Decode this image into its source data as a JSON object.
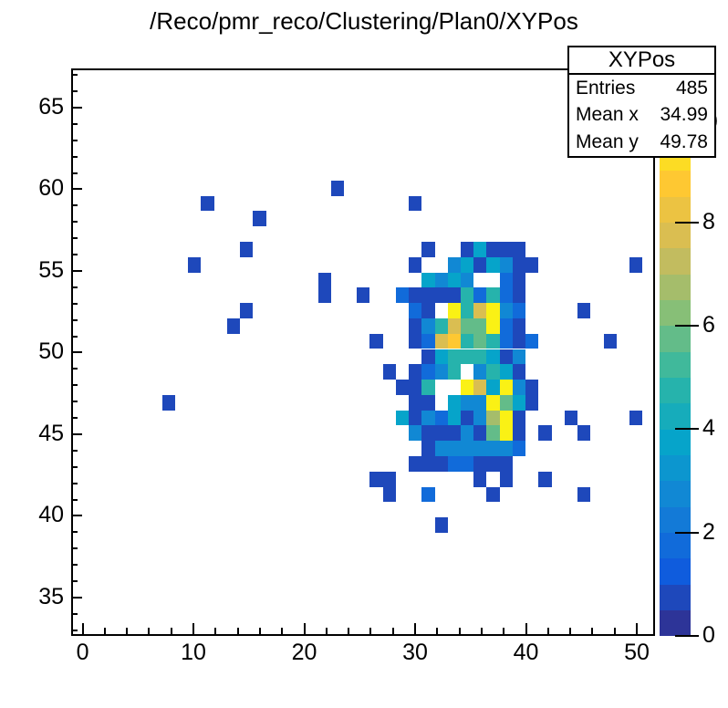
{
  "chart_data": {
    "type": "heatmap",
    "title": "/Reco/pmr_reco/Clustering/Plan0/XYPos",
    "stats": {
      "name": "XYPos",
      "labels": {
        "entries": "Entries",
        "mean_x": "Mean x",
        "mean_y": "Mean y"
      },
      "entries": "485",
      "mean_x": "34.99",
      "mean_y": "49.78"
    },
    "overflow_glyph": ")",
    "x_axis": {
      "min": -1.03,
      "max": 51.64,
      "ticks": [
        0,
        10,
        20,
        30,
        40,
        50
      ],
      "minor_step": 2,
      "major_step": 10
    },
    "y_axis": {
      "min": 32.65,
      "max": 67.4,
      "ticks": [
        35,
        40,
        45,
        50,
        55,
        60,
        65
      ],
      "minor_step": 1,
      "major_step": 5
    },
    "z_axis": {
      "min": 0,
      "max": 10,
      "ticks": [
        0,
        2,
        4,
        6,
        8
      ]
    },
    "grid": {
      "x0": 0.74,
      "dx": 1.171,
      "y0": 64.75,
      "dy": -0.9374
    },
    "count_colors": [
      "#1e48bb",
      "#116bda",
      "#1188d4",
      "#06a4ca",
      "#26b3ac",
      "#63bc89",
      "#a5bd6b",
      "#dabe51",
      "#fec832",
      "#faf115"
    ],
    "palette_bands": [
      "#2d3498",
      "#1e48bb",
      "#0f5cdd",
      "#116bda",
      "#137ad7",
      "#1188d4",
      "#0c96cf",
      "#06a4ca",
      "#16acbb",
      "#26b3ac",
      "#40b99b",
      "#63bc89",
      "#87bf77",
      "#a5bd6b",
      "#c2bc5f",
      "#dabe51",
      "#ecc342",
      "#fec832",
      "#fcdc24",
      "#faf115"
    ],
    "cells": [
      [
        19,
        5,
        1
      ],
      [
        9,
        6,
        1
      ],
      [
        25,
        6,
        1
      ],
      [
        13,
        7,
        1
      ],
      [
        12,
        9,
        1
      ],
      [
        8,
        10,
        1
      ],
      [
        42,
        10,
        1
      ],
      [
        18,
        11,
        1
      ],
      [
        18,
        12,
        1
      ],
      [
        21,
        12,
        1
      ],
      [
        12,
        13,
        1
      ],
      [
        38,
        13,
        1
      ],
      [
        11,
        14,
        1
      ],
      [
        22,
        15,
        1
      ],
      [
        40,
        15,
        1
      ],
      [
        23,
        17,
        1
      ],
      [
        6,
        19,
        1
      ],
      [
        37,
        20,
        1
      ],
      [
        42,
        20,
        1
      ],
      [
        35,
        21,
        1
      ],
      [
        38,
        21,
        1
      ],
      [
        22,
        24,
        1
      ],
      [
        23,
        24,
        1
      ],
      [
        30,
        24,
        1
      ],
      [
        32,
        24,
        1
      ],
      [
        35,
        24,
        1
      ],
      [
        23,
        25,
        1
      ],
      [
        26,
        25,
        2
      ],
      [
        31,
        25,
        1
      ],
      [
        38,
        25,
        1
      ],
      [
        27,
        27,
        1
      ],
      [
        26,
        9,
        1
      ],
      [
        29,
        9,
        1
      ],
      [
        30,
        9,
        4
      ],
      [
        31,
        9,
        1
      ],
      [
        32,
        9,
        1
      ],
      [
        33,
        9,
        1
      ],
      [
        25,
        10,
        1
      ],
      [
        28,
        10,
        3
      ],
      [
        29,
        10,
        4
      ],
      [
        30,
        10,
        1
      ],
      [
        31,
        10,
        4
      ],
      [
        32,
        10,
        3
      ],
      [
        33,
        10,
        1
      ],
      [
        34,
        10,
        1
      ],
      [
        26,
        11,
        4
      ],
      [
        27,
        11,
        3
      ],
      [
        28,
        11,
        4
      ],
      [
        29,
        11,
        3
      ],
      [
        32,
        11,
        2
      ],
      [
        33,
        11,
        1
      ],
      [
        24,
        12,
        2
      ],
      [
        25,
        12,
        1
      ],
      [
        26,
        12,
        1
      ],
      [
        27,
        12,
        1
      ],
      [
        28,
        12,
        1
      ],
      [
        29,
        12,
        5
      ],
      [
        30,
        12,
        2
      ],
      [
        31,
        12,
        5
      ],
      [
        32,
        12,
        2
      ],
      [
        33,
        12,
        1
      ],
      [
        25,
        13,
        2
      ],
      [
        26,
        13,
        1
      ],
      [
        28,
        13,
        10
      ],
      [
        29,
        13,
        5
      ],
      [
        30,
        13,
        8
      ],
      [
        31,
        13,
        10
      ],
      [
        32,
        13,
        3
      ],
      [
        33,
        13,
        2
      ],
      [
        25,
        14,
        1
      ],
      [
        26,
        14,
        3
      ],
      [
        27,
        14,
        5
      ],
      [
        28,
        14,
        8
      ],
      [
        29,
        14,
        6
      ],
      [
        30,
        14,
        6
      ],
      [
        31,
        14,
        10
      ],
      [
        32,
        14,
        2
      ],
      [
        33,
        14,
        1
      ],
      [
        25,
        15,
        1
      ],
      [
        26,
        15,
        2
      ],
      [
        27,
        15,
        8
      ],
      [
        28,
        15,
        9
      ],
      [
        29,
        15,
        5
      ],
      [
        30,
        15,
        6
      ],
      [
        31,
        15,
        5
      ],
      [
        32,
        15,
        2
      ],
      [
        33,
        15,
        1
      ],
      [
        34,
        15,
        2
      ],
      [
        26,
        16,
        1
      ],
      [
        27,
        16,
        4
      ],
      [
        28,
        16,
        5
      ],
      [
        29,
        16,
        5
      ],
      [
        30,
        16,
        5
      ],
      [
        31,
        16,
        4
      ],
      [
        32,
        16,
        1
      ],
      [
        33,
        16,
        3
      ],
      [
        25,
        17,
        1
      ],
      [
        26,
        17,
        2
      ],
      [
        27,
        17,
        3
      ],
      [
        28,
        17,
        5
      ],
      [
        30,
        17,
        3
      ],
      [
        31,
        17,
        5
      ],
      [
        32,
        17,
        4
      ],
      [
        33,
        17,
        1
      ],
      [
        24,
        18,
        1
      ],
      [
        25,
        18,
        1
      ],
      [
        26,
        18,
        5
      ],
      [
        29,
        18,
        10
      ],
      [
        30,
        18,
        8
      ],
      [
        31,
        18,
        4
      ],
      [
        32,
        18,
        10
      ],
      [
        33,
        18,
        3
      ],
      [
        34,
        18,
        1
      ],
      [
        25,
        19,
        1
      ],
      [
        26,
        19,
        1
      ],
      [
        28,
        19,
        4
      ],
      [
        29,
        19,
        3
      ],
      [
        30,
        19,
        3
      ],
      [
        31,
        19,
        10
      ],
      [
        32,
        19,
        6
      ],
      [
        33,
        19,
        4
      ],
      [
        34,
        19,
        1
      ],
      [
        24,
        20,
        4
      ],
      [
        25,
        20,
        1
      ],
      [
        26,
        20,
        3
      ],
      [
        27,
        20,
        2
      ],
      [
        28,
        20,
        4
      ],
      [
        29,
        20,
        1
      ],
      [
        30,
        20,
        3
      ],
      [
        31,
        20,
        7
      ],
      [
        32,
        20,
        10
      ],
      [
        33,
        20,
        1
      ],
      [
        25,
        21,
        3
      ],
      [
        26,
        21,
        1
      ],
      [
        27,
        21,
        1
      ],
      [
        28,
        21,
        1
      ],
      [
        29,
        21,
        3
      ],
      [
        30,
        21,
        1
      ],
      [
        31,
        21,
        6
      ],
      [
        32,
        21,
        10
      ],
      [
        33,
        21,
        1
      ],
      [
        26,
        22,
        1
      ],
      [
        27,
        22,
        3
      ],
      [
        28,
        22,
        3
      ],
      [
        29,
        22,
        3
      ],
      [
        30,
        22,
        3
      ],
      [
        31,
        22,
        3
      ],
      [
        32,
        22,
        3
      ],
      [
        33,
        22,
        2
      ],
      [
        25,
        23,
        1
      ],
      [
        26,
        23,
        1
      ],
      [
        27,
        23,
        1
      ],
      [
        28,
        23,
        2
      ],
      [
        29,
        23,
        2
      ],
      [
        30,
        23,
        1
      ],
      [
        31,
        23,
        1
      ],
      [
        32,
        23,
        1
      ]
    ]
  }
}
